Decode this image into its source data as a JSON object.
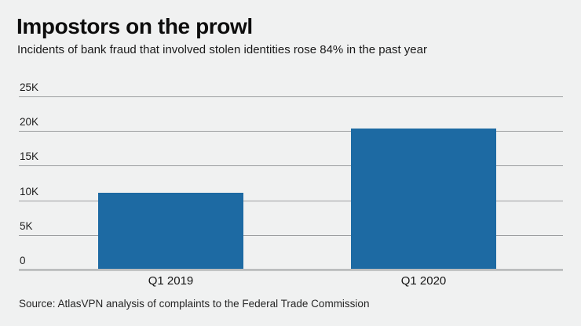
{
  "header": {
    "title": "Impostors on the prowl",
    "subtitle": "Incidents of bank fraud that involved stolen identities rose 84% in the past year"
  },
  "footer": {
    "source": "Source: AtlasVPN analysis of complaints to the Federal Trade Commission"
  },
  "colors": {
    "background": "#f0f1f1",
    "bar": "#1d6aa3",
    "gridline": "#9c9ea0",
    "baseline": "#bcbec0",
    "title_text": "#0d0d0d",
    "body_text": "#1e1e1e"
  },
  "chart_data": {
    "type": "bar",
    "title": "Impostors on the prowl",
    "subtitle": "Incidents of bank fraud that involved stolen identities rose 84% in the past year",
    "categories": [
      "Q1 2019",
      "Q1 2020"
    ],
    "values": [
      11000,
      20200
    ],
    "xlabel": "",
    "ylabel": "",
    "ylim": [
      0,
      25000
    ],
    "yticks": [
      {
        "value": 0,
        "label": "0"
      },
      {
        "value": 5000,
        "label": "5K"
      },
      {
        "value": 10000,
        "label": "10K"
      },
      {
        "value": 15000,
        "label": "15K"
      },
      {
        "value": 20000,
        "label": "20K"
      },
      {
        "value": 25000,
        "label": "25K"
      }
    ],
    "grid": true,
    "legend": false,
    "source": "Source: AtlasVPN analysis of complaints to the Federal Trade Commission"
  }
}
